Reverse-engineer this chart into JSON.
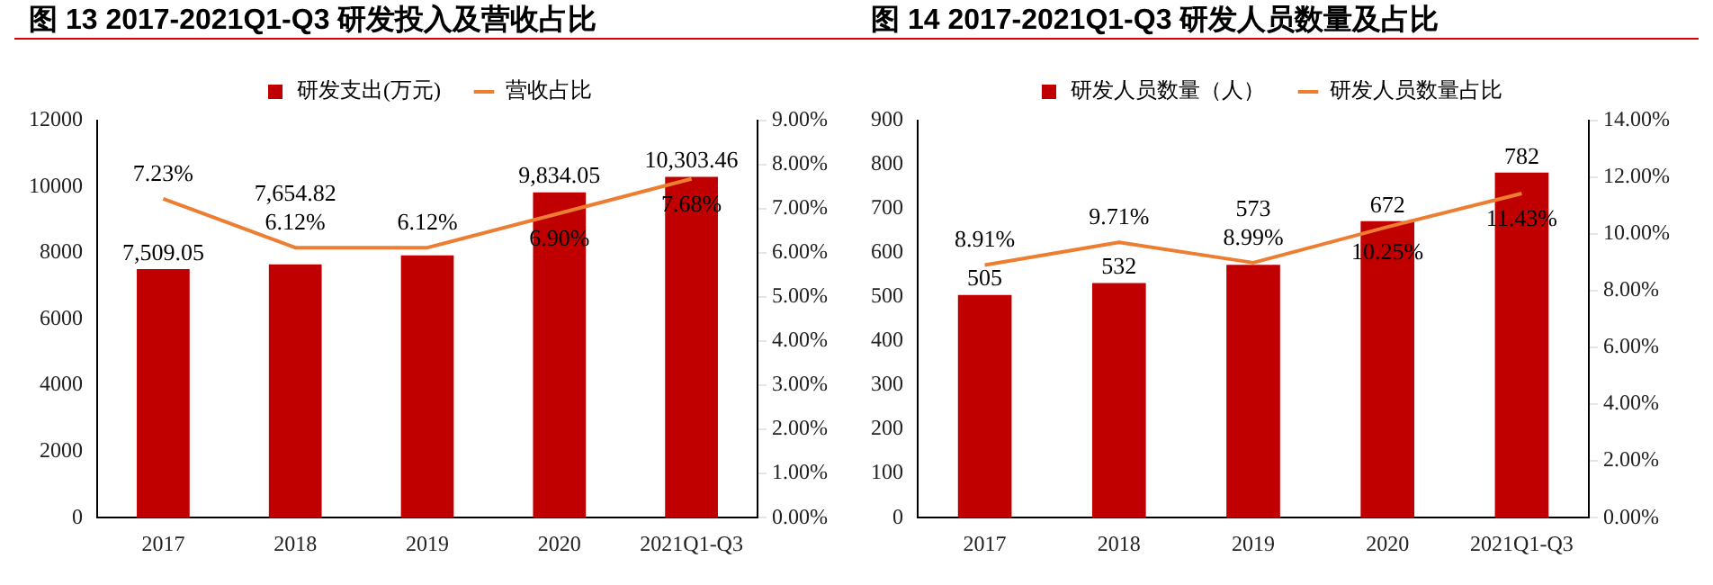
{
  "chart_data": [
    {
      "type": "bar",
      "title": "图 13 2017-2021Q1-Q3 研发投入及营收占比",
      "categories": [
        "2017",
        "2018",
        "2019",
        "2020",
        "2021Q1-Q3"
      ],
      "series": [
        {
          "name": "研发支出(万元)",
          "color": "#c00000",
          "values": [
            7509.05,
            7654.82,
            7928,
            9834.05,
            10303.46
          ],
          "value_labels": [
            "7,509.05",
            "7,654.82",
            null,
            "9,834.05",
            "10,303.46"
          ]
        },
        {
          "name": "营收占比",
          "type": "line",
          "axis": "y2",
          "color": "#ed7d31",
          "values": [
            7.23,
            6.12,
            6.12,
            6.9,
            7.68
          ],
          "value_labels": [
            "7.23%",
            "6.12%",
            "6.12%",
            "6.90%",
            "7.68%"
          ]
        }
      ],
      "ylim": [
        0,
        12000
      ],
      "yticks": [
        0,
        2000,
        4000,
        6000,
        8000,
        10000,
        12000
      ],
      "y2lim": [
        0,
        9
      ],
      "y2ticks": [
        {
          "value": 0,
          "label": "0.00%"
        },
        {
          "value": 1,
          "label": "1.00%"
        },
        {
          "value": 2,
          "label": "2.00%"
        },
        {
          "value": 3,
          "label": "3.00%"
        },
        {
          "value": 4,
          "label": "4.00%"
        },
        {
          "value": 5,
          "label": "5.00%"
        },
        {
          "value": 6,
          "label": "6.00%"
        },
        {
          "value": 7,
          "label": "7.00%"
        },
        {
          "value": 8,
          "label": "8.00%"
        },
        {
          "value": 9,
          "label": "9.00%"
        }
      ],
      "legend": "top",
      "grid": false,
      "marker": "none"
    },
    {
      "type": "bar",
      "title": "图 14 2017-2021Q1-Q3 研发人员数量及占比",
      "categories": [
        "2017",
        "2018",
        "2019",
        "2020",
        "2021Q1-Q3"
      ],
      "series": [
        {
          "name": "研发人员数量（人）",
          "color": "#c00000",
          "values": [
            505,
            532,
            573,
            672,
            782
          ],
          "value_labels": [
            "505",
            "532",
            "573",
            "672",
            "782"
          ]
        },
        {
          "name": "研发人员数量占比",
          "type": "line",
          "axis": "y2",
          "color": "#ed7d31",
          "values": [
            8.91,
            9.71,
            8.99,
            10.25,
            11.43
          ],
          "value_labels": [
            "8.91%",
            "9.71%",
            "8.99%",
            "10.25%",
            "11.43%"
          ]
        }
      ],
      "ylim": [
        0,
        900
      ],
      "yticks": [
        0,
        100,
        200,
        300,
        400,
        500,
        600,
        700,
        800,
        900
      ],
      "y2lim": [
        0,
        14
      ],
      "y2ticks": [
        {
          "value": 0,
          "label": "0.00%"
        },
        {
          "value": 2,
          "label": "2.00%"
        },
        {
          "value": 4,
          "label": "4.00%"
        },
        {
          "value": 6,
          "label": "6.00%"
        },
        {
          "value": 8,
          "label": "8.00%"
        },
        {
          "value": 10,
          "label": "10.00%"
        },
        {
          "value": 12,
          "label": "12.00%"
        },
        {
          "value": 14,
          "label": "14.00%"
        }
      ],
      "legend": "top",
      "grid": false,
      "marker": "none"
    }
  ]
}
